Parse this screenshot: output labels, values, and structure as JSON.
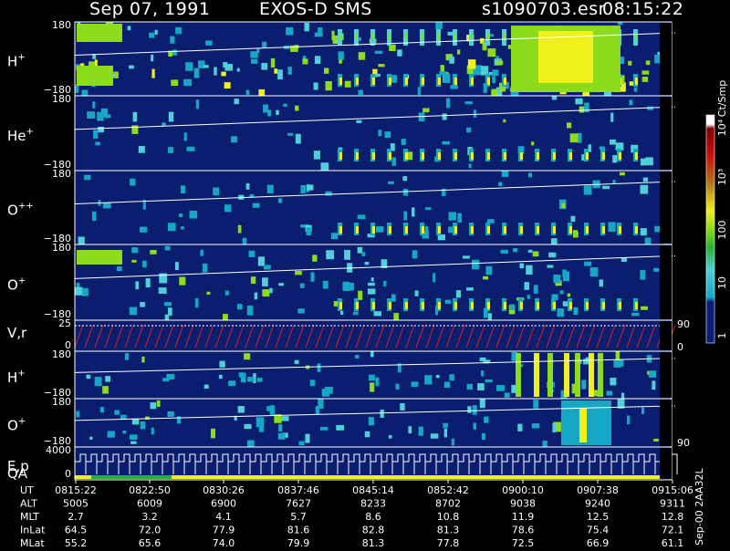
{
  "title": {
    "date": "Sep 07, 1991",
    "instrument": "EXOS-D SMS",
    "file": "s1090703.esr",
    "time": "08:15:22"
  },
  "colors": {
    "background": "#0a1d6e",
    "scale": [
      "#0b1c73",
      "#15a7c4",
      "#4fd0d8",
      "#28b030",
      "#8ddc1c",
      "#f0f01c",
      "#b07818",
      "#c81010",
      "#800000",
      "#ffffff"
    ]
  },
  "colorbar": {
    "unit": "Ct/Smp",
    "labels": [
      "1",
      "10",
      "100",
      "10³",
      "10⁴"
    ]
  },
  "chart_data": {
    "type": "heatmap",
    "panels": [
      {
        "name": "H",
        "sup": "+",
        "ymax": "180",
        "ymin": "−180"
      },
      {
        "name": "He",
        "sup": "+",
        "ymax": "180",
        "ymin": "−180"
      },
      {
        "name": "O",
        "sup": "++",
        "ymax": "180",
        "ymin": "−180"
      },
      {
        "name": "O",
        "sup": "+",
        "ymax": "180",
        "ymin": "−180"
      },
      {
        "name": "V,r",
        "sup": "",
        "ymax": "25",
        "ymin": "0",
        "right_max": "90",
        "right_min": "0"
      },
      {
        "name": "H",
        "sup": "+",
        "ymax": "180",
        "ymin": "−180"
      },
      {
        "name": "O",
        "sup": "+",
        "ymax": "180",
        "ymin": "−180",
        "right_min": "90"
      },
      {
        "name": "E,p",
        "sup": "",
        "ymax": "4000",
        "ymin": "0",
        "qa": "QA"
      }
    ],
    "footer": {
      "rows": [
        {
          "label": "UT",
          "values": [
            "0815:22",
            "0822:50",
            "0830:26",
            "0837:46",
            "0845:14",
            "0852:42",
            "0900:10",
            "0907:38",
            "0915:06"
          ]
        },
        {
          "label": "ALT",
          "values": [
            "5005",
            "6009",
            "6900",
            "7627",
            "8233",
            "8702",
            "9038",
            "9240",
            "9311"
          ]
        },
        {
          "label": "MLT",
          "values": [
            "2.7",
            "3.2",
            "4.1",
            "5.7",
            "8.6",
            "10.8",
            "11.9",
            "12.5",
            "12.8"
          ]
        },
        {
          "label": "InLat",
          "values": [
            "64.5",
            "72.0",
            "77.9",
            "81.6",
            "82.8",
            "81.3",
            "78.6",
            "75.4",
            "72.1"
          ]
        },
        {
          "label": "MLat",
          "values": [
            "55.2",
            "65.6",
            "74.0",
            "79.9",
            "81.3",
            "77.8",
            "72.5",
            "66.9",
            "61.1"
          ]
        }
      ]
    },
    "side_label": "Sep-00 2AA32L"
  }
}
